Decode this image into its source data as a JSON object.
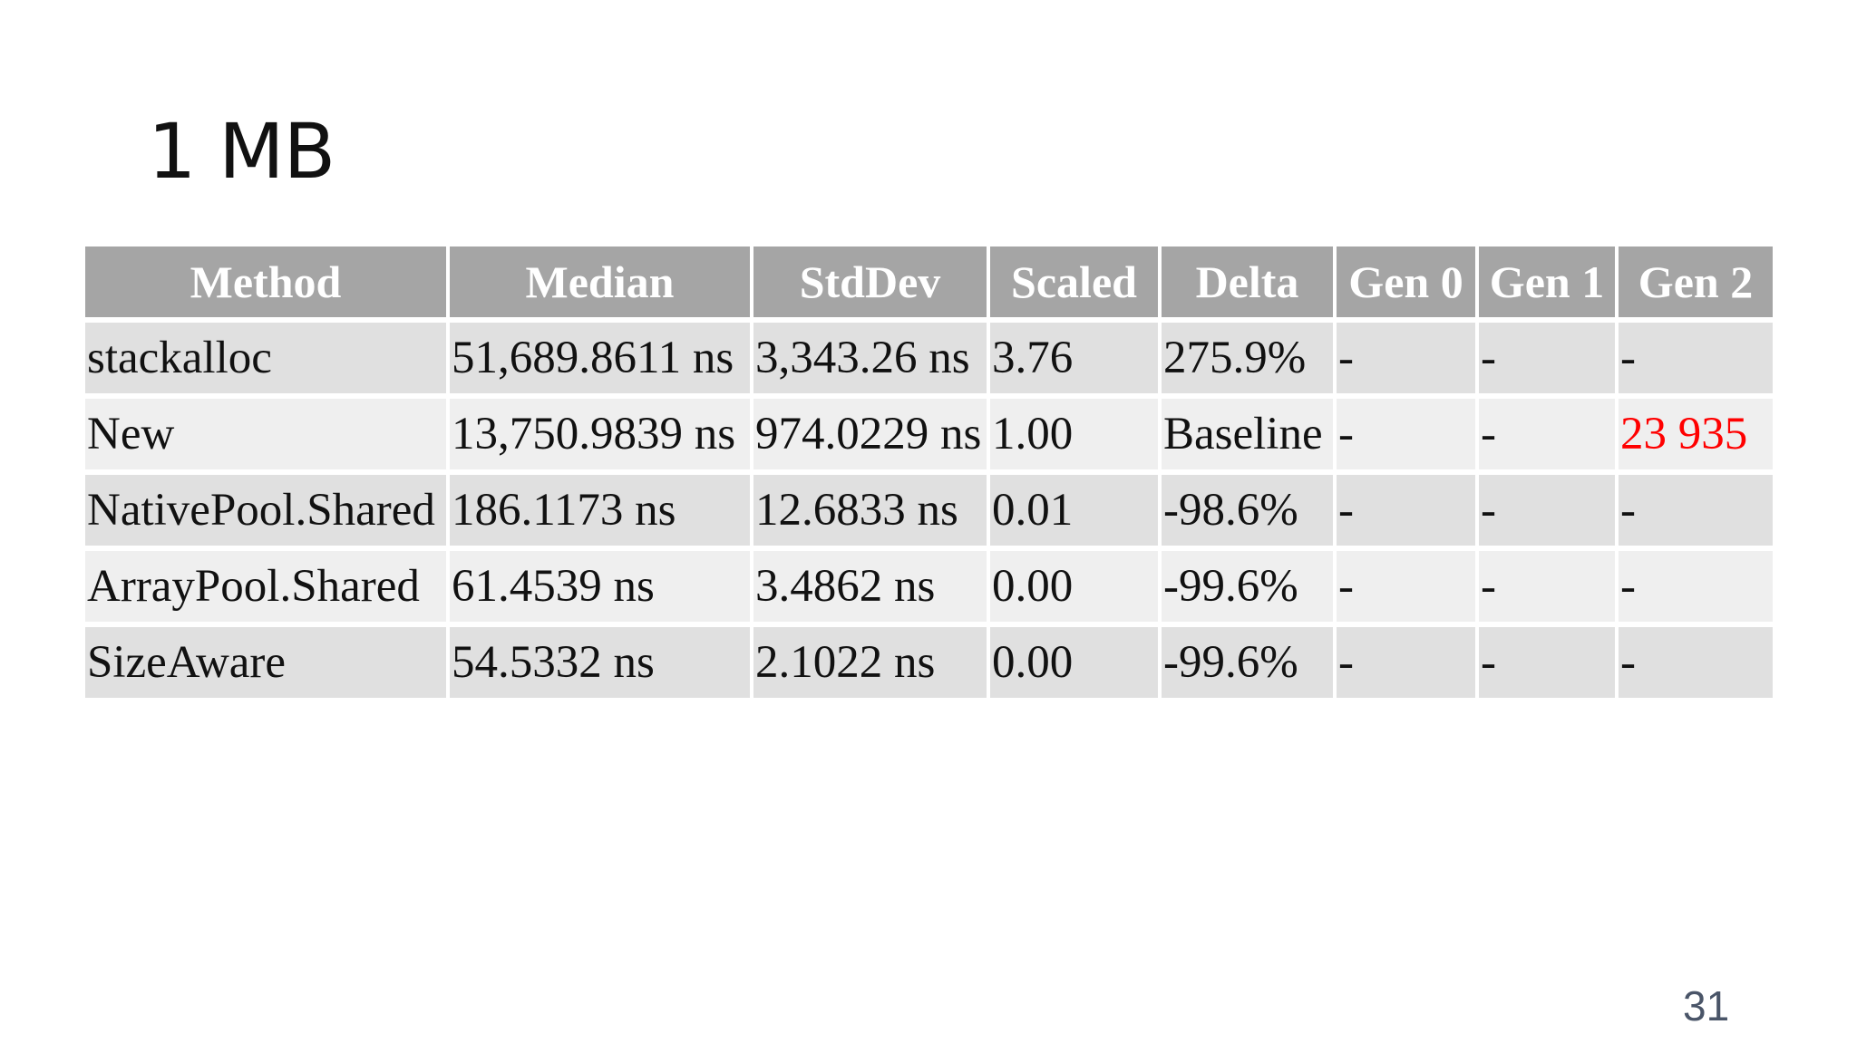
{
  "slide": {
    "title": "1 MB",
    "page_number": "31",
    "highlight_color": "#ff0000"
  },
  "table": {
    "headers": [
      "Method",
      "Median",
      "StdDev",
      "Scaled",
      "Delta",
      "Gen 0",
      "Gen 1",
      "Gen 2"
    ],
    "rows": [
      [
        "stackalloc",
        "51,689.8611 ns",
        "3,343.26 ns",
        "3.76",
        "275.9%",
        "-",
        "-",
        "-"
      ],
      [
        "New",
        "13,750.9839 ns",
        "974.0229 ns",
        "1.00",
        "Baseline",
        "-",
        "-",
        "23 935"
      ],
      [
        "NativePool.Shared",
        "186.1173 ns",
        "12.6833 ns",
        "0.01",
        "-98.6%",
        "-",
        "-",
        "-"
      ],
      [
        "ArrayPool.Shared",
        "61.4539 ns",
        "3.4862 ns",
        "0.00",
        "-99.6%",
        "-",
        "-",
        "-"
      ],
      [
        "SizeAware",
        "54.5332 ns",
        "2.1022 ns",
        "0.00",
        "-99.6%",
        "-",
        "-",
        "-"
      ]
    ]
  }
}
